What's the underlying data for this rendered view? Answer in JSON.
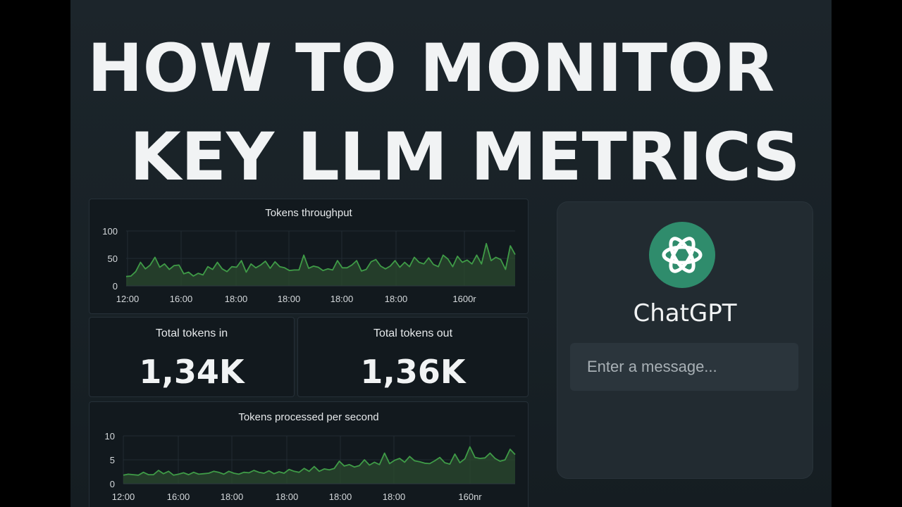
{
  "headline": {
    "line1": "HOW TO MONITOR",
    "line2": "KEY LLM METRICS"
  },
  "colors": {
    "background": "#182126",
    "panel": "#12191e",
    "accent_green": "#3f9b47",
    "chatgpt_logo": "#2f8c6c",
    "text": "#f1f3f4"
  },
  "stats": {
    "tokens_in": {
      "label": "Total tokens in",
      "value": "1,34K"
    },
    "tokens_out": {
      "label": "Total tokens out",
      "value": "1,36K"
    }
  },
  "chatgpt": {
    "logo_icon": "openai-knot-icon",
    "name": "ChatGPT",
    "input_placeholder": "Enter a message..."
  },
  "chart_data": [
    {
      "type": "area",
      "title": "Tokens throughput",
      "ylim": [
        0,
        100
      ],
      "yticks": [
        "0",
        "50",
        "100"
      ],
      "xticks": [
        "12:00",
        "16:00",
        "18:00",
        "18:00",
        "18:00",
        "18:00",
        "1600r"
      ],
      "grid": true,
      "values": [
        17,
        18,
        26,
        43,
        31,
        38,
        52,
        34,
        40,
        30,
        37,
        38,
        22,
        25,
        18,
        23,
        20,
        35,
        30,
        43,
        31,
        26,
        35,
        34,
        46,
        25,
        40,
        33,
        38,
        45,
        32,
        44,
        35,
        33,
        28,
        29,
        29,
        56,
        32,
        36,
        34,
        28,
        31,
        29,
        46,
        33,
        33,
        38,
        46,
        27,
        30,
        44,
        48,
        36,
        31,
        36,
        46,
        34,
        43,
        35,
        52,
        43,
        40,
        51,
        39,
        35,
        56,
        49,
        35,
        54,
        43,
        47,
        40,
        56,
        40,
        77,
        46,
        52,
        48,
        30,
        73,
        57
      ]
    },
    {
      "type": "area",
      "title": "Tokens processed per second",
      "ylim": [
        0,
        10
      ],
      "yticks": [
        "0",
        "5",
        "10"
      ],
      "xticks": [
        "12:00",
        "16:00",
        "18:00",
        "18:00",
        "18:00",
        "18:00",
        "160nr"
      ],
      "grid": true,
      "values": [
        1.8,
        2.0,
        1.9,
        1.8,
        2.4,
        1.9,
        1.9,
        2.8,
        2.1,
        2.6,
        1.8,
        2.0,
        2.3,
        1.9,
        2.4,
        2.0,
        2.1,
        2.2,
        2.6,
        2.4,
        2.0,
        2.6,
        2.2,
        2.0,
        2.4,
        2.3,
        2.8,
        2.4,
        2.2,
        2.7,
        2.1,
        2.5,
        2.2,
        3.0,
        2.6,
        2.4,
        3.2,
        2.6,
        3.6,
        2.6,
        3.1,
        2.9,
        3.2,
        4.7,
        3.7,
        4.0,
        3.5,
        3.8,
        5.0,
        3.9,
        4.5,
        4.0,
        6.4,
        4.2,
        4.9,
        5.3,
        4.5,
        5.7,
        4.8,
        4.6,
        4.3,
        4.2,
        4.8,
        5.5,
        4.4,
        4.1,
        6.2,
        4.4,
        5.2,
        7.7,
        5.5,
        5.3,
        5.4,
        6.4,
        5.3,
        4.7,
        5.0,
        7.2,
        6.1
      ]
    }
  ]
}
